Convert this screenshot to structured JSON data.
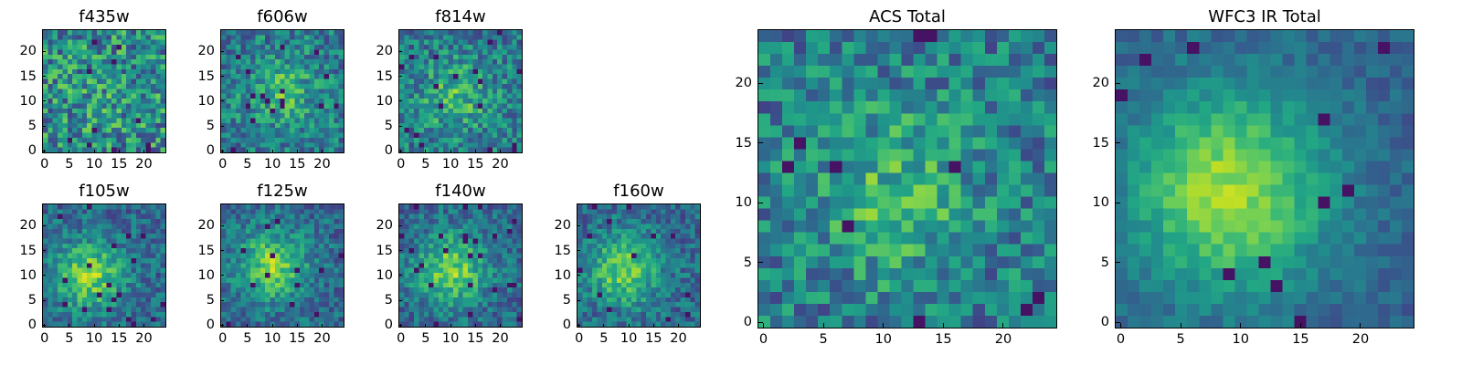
{
  "figure": {
    "background": "#ffffff",
    "colormap": "viridis"
  },
  "chart_data": [
    {
      "type": "heatmap",
      "title": "f435w",
      "xlabel": "",
      "ylabel": "",
      "shape": [
        25,
        25
      ],
      "xlim": [
        0,
        25
      ],
      "ylim": [
        0,
        25
      ],
      "xticks": [
        0,
        5,
        10,
        15,
        20
      ],
      "yticks": [
        0,
        5,
        10,
        15,
        20
      ],
      "pattern": "noise",
      "peak": [
        12,
        10
      ],
      "seed": 11
    },
    {
      "type": "heatmap",
      "title": "f606w",
      "xlabel": "",
      "ylabel": "",
      "shape": [
        25,
        25
      ],
      "xlim": [
        0,
        25
      ],
      "ylim": [
        0,
        25
      ],
      "xticks": [
        0,
        5,
        10,
        15,
        20
      ],
      "yticks": [
        0,
        5,
        10,
        15,
        20
      ],
      "pattern": "faint-center",
      "peak": [
        12,
        12
      ],
      "seed": 23
    },
    {
      "type": "heatmap",
      "title": "f814w",
      "xlabel": "",
      "ylabel": "",
      "shape": [
        25,
        25
      ],
      "xlim": [
        0,
        25
      ],
      "ylim": [
        0,
        25
      ],
      "xticks": [
        0,
        5,
        10,
        15,
        20
      ],
      "yticks": [
        0,
        5,
        10,
        15,
        20
      ],
      "pattern": "faint-center",
      "peak": [
        11,
        11
      ],
      "seed": 37
    },
    {
      "type": "heatmap",
      "title": "f105w",
      "xlabel": "",
      "ylabel": "",
      "shape": [
        25,
        25
      ],
      "xlim": [
        0,
        25
      ],
      "ylim": [
        0,
        25
      ],
      "xticks": [
        0,
        5,
        10,
        15,
        20
      ],
      "yticks": [
        0,
        5,
        10,
        15,
        20
      ],
      "pattern": "center",
      "peak": [
        9,
        10
      ],
      "seed": 41
    },
    {
      "type": "heatmap",
      "title": "f125w",
      "xlabel": "",
      "ylabel": "",
      "shape": [
        25,
        25
      ],
      "xlim": [
        0,
        25
      ],
      "ylim": [
        0,
        25
      ],
      "xticks": [
        0,
        5,
        10,
        15,
        20
      ],
      "yticks": [
        0,
        5,
        10,
        15,
        20
      ],
      "pattern": "center",
      "peak": [
        10,
        12
      ],
      "seed": 53
    },
    {
      "type": "heatmap",
      "title": "f140w",
      "xlabel": "",
      "ylabel": "",
      "shape": [
        25,
        25
      ],
      "xlim": [
        0,
        25
      ],
      "ylim": [
        0,
        25
      ],
      "xticks": [
        0,
        5,
        10,
        15,
        20
      ],
      "yticks": [
        0,
        5,
        10,
        15,
        20
      ],
      "pattern": "center",
      "peak": [
        10,
        11
      ],
      "seed": 67
    },
    {
      "type": "heatmap",
      "title": "f160w",
      "xlabel": "",
      "ylabel": "",
      "shape": [
        25,
        25
      ],
      "xlim": [
        0,
        25
      ],
      "ylim": [
        0,
        25
      ],
      "xticks": [
        0,
        5,
        10,
        15,
        20
      ],
      "yticks": [
        0,
        5,
        10,
        15,
        20
      ],
      "pattern": "center",
      "peak": [
        9,
        11
      ],
      "seed": 79
    },
    {
      "type": "heatmap",
      "title": "ACS Total",
      "xlabel": "",
      "ylabel": "",
      "shape": [
        25,
        25
      ],
      "xlim": [
        0,
        25
      ],
      "ylim": [
        0,
        25
      ],
      "xticks": [
        0,
        5,
        10,
        15,
        20
      ],
      "yticks": [
        0,
        5,
        10,
        15,
        20
      ],
      "pattern": "faint-center",
      "peak": [
        11,
        11
      ],
      "seed": 97
    },
    {
      "type": "heatmap",
      "title": "WFC3 IR Total",
      "xlabel": "",
      "ylabel": "",
      "shape": [
        25,
        25
      ],
      "xlim": [
        0,
        25
      ],
      "ylim": [
        0,
        25
      ],
      "xticks": [
        0,
        5,
        10,
        15,
        20
      ],
      "yticks": [
        0,
        5,
        10,
        15,
        20
      ],
      "pattern": "smooth-center",
      "peak": [
        9,
        11
      ],
      "seed": 113
    }
  ]
}
